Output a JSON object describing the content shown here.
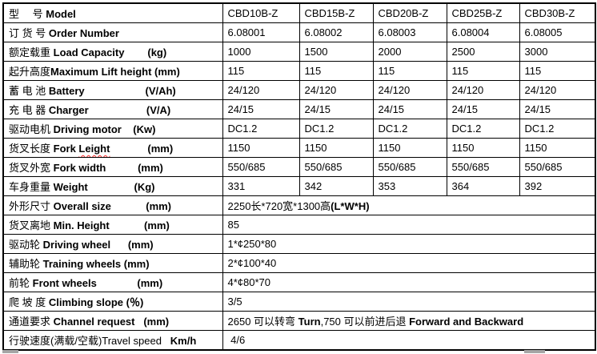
{
  "colors": {
    "border": "#000000",
    "text": "#000000",
    "spellcheck_squiggle": "#ff2a2a",
    "table_handle": "#a6a6a6",
    "background": "#ffffff"
  },
  "icons": {
    "bottom_left_handle": "table-handle-bar",
    "bottom_right_handle": "table-handle-bar"
  },
  "table": {
    "rows": [
      {
        "label": [
          {
            "t": "型　 号 "
          },
          {
            "t": "Model",
            "b": true
          }
        ],
        "merged": false,
        "values": [
          "CBD10B-Z",
          "CBD15B-Z",
          "CBD20B-Z",
          "CBD25B-Z",
          "CBD30B-Z"
        ]
      },
      {
        "label": [
          {
            "t": "订 货 号 "
          },
          {
            "t": "Order Number",
            "b": true
          }
        ],
        "merged": false,
        "values": [
          "6.08001",
          "6.08002",
          "6.08003",
          "6.08004",
          "6.08005"
        ]
      },
      {
        "label": [
          {
            "t": "额定载重 "
          },
          {
            "t": "Load Capacity        (kg)",
            "b": true
          }
        ],
        "merged": false,
        "values": [
          "1000",
          "1500",
          "2000",
          "2500",
          "3000"
        ]
      },
      {
        "label": [
          {
            "t": "起升高度"
          },
          {
            "t": "Maximum Lift height (mm)",
            "b": true
          }
        ],
        "merged": false,
        "values": [
          "115",
          "115",
          "115",
          "115",
          "115"
        ]
      },
      {
        "label": [
          {
            "t": "蓄 电 池 "
          },
          {
            "t": "Battery                     (V/Ah)",
            "b": true
          }
        ],
        "merged": false,
        "values": [
          "24/120",
          "24/120",
          "24/120",
          "24/120",
          "24/120"
        ]
      },
      {
        "label": [
          {
            "t": "充 电 器 "
          },
          {
            "t": "Charger                    (V/A)",
            "b": true
          }
        ],
        "merged": false,
        "values": [
          "24/15",
          "24/15",
          "24/15",
          "24/15",
          "24/15"
        ]
      },
      {
        "label": [
          {
            "t": "驱动电机 "
          },
          {
            "t": "Driving motor    (Kw)",
            "b": true
          }
        ],
        "merged": false,
        "values": [
          "DC1.2",
          "DC1.2",
          "DC1.2",
          "DC1.2",
          "DC1.2"
        ]
      },
      {
        "label": [
          {
            "t": "货叉长度 "
          },
          {
            "t": "Fork ",
            "b": true
          },
          {
            "t": "Leight",
            "b": true,
            "sq": true
          },
          {
            "t": "             (mm)",
            "b": true
          }
        ],
        "merged": false,
        "values": [
          "1150",
          "1150",
          "1150",
          "1150",
          "1150"
        ]
      },
      {
        "label": [
          {
            "t": "货叉外宽 "
          },
          {
            "t": "Fork width           (mm)",
            "b": true
          }
        ],
        "merged": false,
        "values": [
          "550/685",
          "550/685",
          "550/685",
          "550/685",
          "550/685"
        ]
      },
      {
        "label": [
          {
            "t": "车身重量 "
          },
          {
            "t": "Weight                (Kg)",
            "b": true
          }
        ],
        "merged": false,
        "values": [
          "331",
          "342",
          "353",
          "364",
          "392"
        ]
      },
      {
        "label": [
          {
            "t": "外形尺寸 "
          },
          {
            "t": "Overall size            (mm)",
            "b": true
          }
        ],
        "merged": true,
        "values": [
          [
            {
              "t": "2250长*720宽*1300高"
            },
            {
              "t": "(L*W*H)",
              "b": true
            }
          ]
        ]
      },
      {
        "label": [
          {
            "t": "货叉离地 "
          },
          {
            "t": "Min. Height            (mm)",
            "b": true
          }
        ],
        "merged": true,
        "values": [
          "85"
        ]
      },
      {
        "label": [
          {
            "t": "驱动轮 "
          },
          {
            "t": "Driving wheel      (mm)",
            "b": true
          }
        ],
        "merged": true,
        "values": [
          "1*¢250*80"
        ]
      },
      {
        "label": [
          {
            "t": "辅助轮 "
          },
          {
            "t": "Training wheels (mm)",
            "b": true
          }
        ],
        "merged": true,
        "values": [
          "2*¢100*40"
        ]
      },
      {
        "label": [
          {
            "t": "前轮 "
          },
          {
            "t": "Front wheels              (mm)",
            "b": true
          }
        ],
        "merged": true,
        "values": [
          "4*¢80*70"
        ]
      },
      {
        "label": [
          {
            "t": "爬 坡 度 "
          },
          {
            "t": "Climbing slope (％)",
            "b": true
          }
        ],
        "merged": true,
        "values": [
          "3/5"
        ]
      },
      {
        "label": [
          {
            "t": "通道要求 "
          },
          {
            "t": "Channel request   (mm)",
            "b": true
          }
        ],
        "merged": true,
        "values": [
          [
            {
              "t": "2650 可以转弯 "
            },
            {
              "t": "Turn",
              "b": true
            },
            {
              "t": ",750 可以前进后退 "
            },
            {
              "t": "Forward and Backward",
              "b": true
            }
          ]
        ]
      },
      {
        "label": [
          {
            "t": "行驶速度(满载/空载)Travel speed   "
          },
          {
            "t": "Km/h",
            "b": true
          }
        ],
        "merged": true,
        "values": [
          " 4/6"
        ]
      }
    ]
  }
}
